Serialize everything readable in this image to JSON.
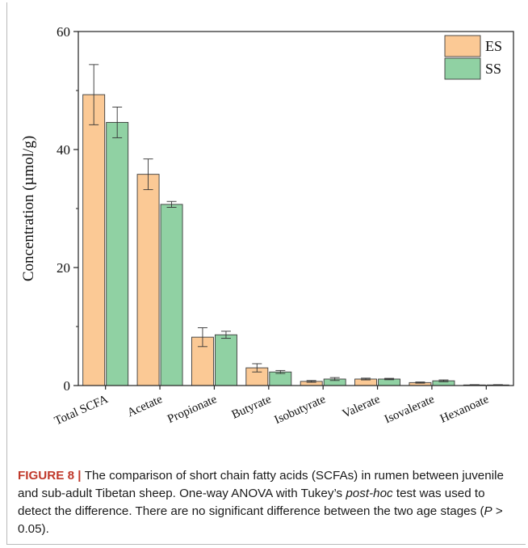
{
  "chart_data": {
    "type": "bar",
    "ylabel": "Concentration (µmol/g)",
    "ylim": [
      0,
      60
    ],
    "yticks": [
      0,
      20,
      40,
      60
    ],
    "legend_position": "top-right",
    "categories": [
      "Total SCFA",
      "Acetate",
      "Propionate",
      "Butyrate",
      "Isobutyrate",
      "Valerate",
      "Isovalerate",
      "Hexanoate"
    ],
    "series": [
      {
        "name": "ES",
        "color": "#fbc995",
        "values": [
          49.3,
          35.8,
          8.2,
          3.0,
          0.7,
          1.1,
          0.5,
          0.1
        ],
        "errors": [
          5.1,
          2.6,
          1.6,
          0.7,
          0.15,
          0.15,
          0.1,
          0.05
        ]
      },
      {
        "name": "SS",
        "color": "#90d1a3",
        "values": [
          44.6,
          30.7,
          8.6,
          2.3,
          1.1,
          1.1,
          0.8,
          0.1
        ],
        "errors": [
          2.6,
          0.5,
          0.6,
          0.25,
          0.25,
          0.12,
          0.15,
          0.05
        ]
      }
    ]
  },
  "caption": {
    "figure_label": "FIGURE 8",
    "separator": " | ",
    "text_1": "The comparison of short chain fatty acids (SCFAs) in rumen between juvenile and sub-adult Tibetan sheep. One-way ANOVA with Tukey’s ",
    "text_italic": "post-hoc",
    "text_2": " test was used to detect the difference. There are no significant difference between the two age stages (",
    "p_symbol": "P",
    "text_3": " > 0.05)."
  }
}
